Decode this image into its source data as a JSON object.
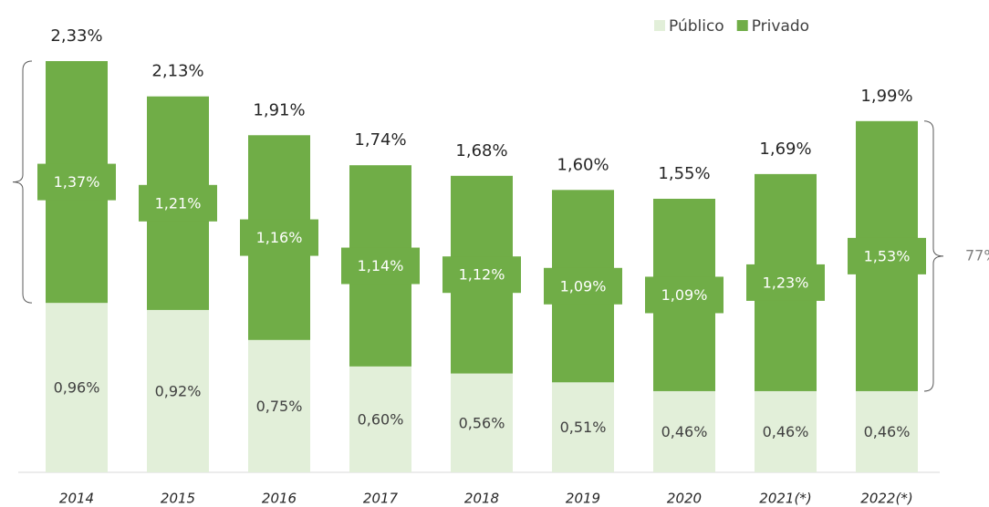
{
  "chart_data": {
    "type": "stacked_bar",
    "categories": [
      "2014",
      "2015",
      "2016",
      "2017",
      "2018",
      "2019",
      "2020",
      "2021(*)",
      "2022(*)"
    ],
    "series": [
      {
        "name": "Público",
        "color": "#e2efd9",
        "values": [
          0.96,
          0.92,
          0.75,
          0.6,
          0.56,
          0.51,
          0.46,
          0.46,
          0.46
        ],
        "value_labels": [
          "0,96%",
          "0,92%",
          "0,75%",
          "0,60%",
          "0,56%",
          "0,51%",
          "0,46%",
          "0,46%",
          "0,46%"
        ]
      },
      {
        "name": "Privado",
        "color": "#70ad47",
        "values": [
          1.37,
          1.21,
          1.16,
          1.14,
          1.12,
          1.09,
          1.09,
          1.23,
          1.53
        ],
        "value_labels": [
          "1,37%",
          "1,21%",
          "1,16%",
          "1,14%",
          "1,12%",
          "1,09%",
          "1,09%",
          "1,23%",
          "1,53%"
        ]
      }
    ],
    "totals": [
      2.33,
      2.13,
      1.91,
      1.74,
      1.68,
      1.6,
      1.55,
      1.69,
      1.99
    ],
    "total_labels": [
      "2,33%",
      "2,13%",
      "1,91%",
      "1,74%",
      "1,68%",
      "1,60%",
      "1,55%",
      "1,69%",
      "1,99%"
    ],
    "annotation": "77%",
    "legend": "top-right"
  }
}
